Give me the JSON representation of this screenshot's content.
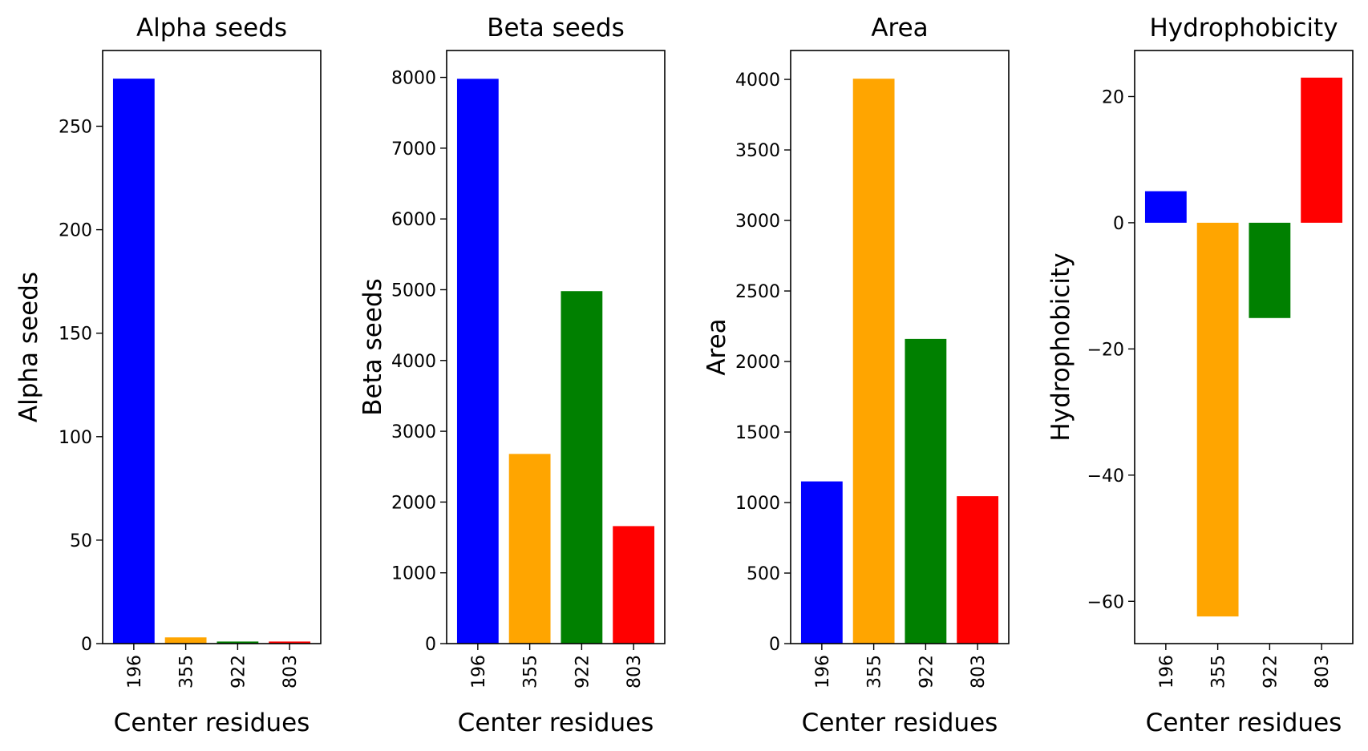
{
  "chart_data": [
    {
      "type": "bar",
      "title": "Alpha seeds",
      "xlabel": "Center residues",
      "ylabel": "Alpha seeds",
      "categories": [
        "196",
        "355",
        "922",
        "803"
      ],
      "values": [
        273,
        3,
        1,
        1
      ],
      "colors": [
        "#0000ff",
        "#ffa500",
        "#008000",
        "#ff0000"
      ],
      "ylim": [
        0,
        286.6
      ],
      "yticks": [
        0,
        50,
        100,
        150,
        200,
        250
      ],
      "grid": false
    },
    {
      "type": "bar",
      "title": "Beta seeds",
      "xlabel": "Center residues",
      "ylabel": "Beta seeds",
      "categories": [
        "196",
        "355",
        "922",
        "803"
      ],
      "values": [
        7980,
        2680,
        4980,
        1660
      ],
      "colors": [
        "#0000ff",
        "#ffa500",
        "#008000",
        "#ff0000"
      ],
      "ylim": [
        0,
        8380
      ],
      "yticks": [
        0,
        1000,
        2000,
        3000,
        4000,
        5000,
        6000,
        7000,
        8000
      ],
      "grid": false
    },
    {
      "type": "bar",
      "title": "Area",
      "xlabel": "Center residues",
      "ylabel": "Area",
      "categories": [
        "196",
        "355",
        "922",
        "803"
      ],
      "values": [
        1150,
        4005,
        2160,
        1045
      ],
      "colors": [
        "#0000ff",
        "#ffa500",
        "#008000",
        "#ff0000"
      ],
      "ylim": [
        0,
        4205
      ],
      "yticks": [
        0,
        500,
        1000,
        1500,
        2000,
        2500,
        3000,
        3500,
        4000
      ],
      "grid": false
    },
    {
      "type": "bar",
      "title": "Hydrophobicity",
      "xlabel": "Center residues",
      "ylabel": "Hydrophobicity",
      "categories": [
        "196",
        "355",
        "922",
        "803"
      ],
      "values": [
        5,
        -62.4,
        -15.1,
        23
      ],
      "colors": [
        "#0000ff",
        "#ffa500",
        "#008000",
        "#ff0000"
      ],
      "ylim": [
        -66.7,
        27.3
      ],
      "yticks": [
        -60,
        -40,
        -20,
        0,
        20
      ],
      "grid": false
    }
  ]
}
